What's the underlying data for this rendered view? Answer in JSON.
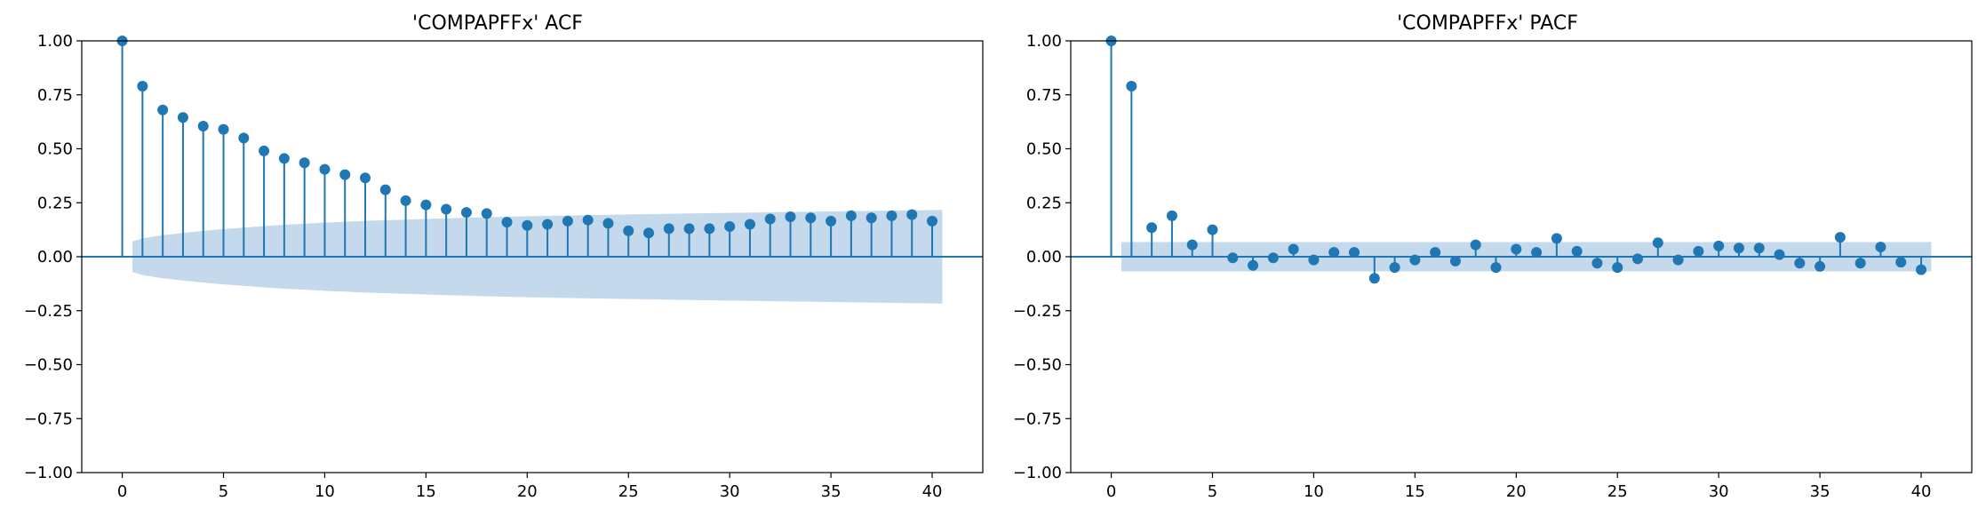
{
  "chart_data": [
    {
      "type": "stem",
      "title": "'COMPAPFFx' ACF",
      "xlabel": "",
      "ylabel": "",
      "xlim": [
        -2,
        42.5
      ],
      "ylim": [
        -1.0,
        1.0
      ],
      "x_ticks": [
        0,
        5,
        10,
        15,
        20,
        25,
        30,
        35,
        40
      ],
      "y_ticks": [
        -1.0,
        -0.75,
        -0.5,
        -0.25,
        0.0,
        0.25,
        0.5,
        0.75,
        1.0
      ],
      "y_tick_labels": [
        "−1.00",
        "−0.75",
        "−0.50",
        "−0.25",
        "0.00",
        "0.25",
        "0.50",
        "0.75",
        "1.00"
      ],
      "lags": [
        0,
        1,
        2,
        3,
        4,
        5,
        6,
        7,
        8,
        9,
        10,
        11,
        12,
        13,
        14,
        15,
        16,
        17,
        18,
        19,
        20,
        21,
        22,
        23,
        24,
        25,
        26,
        27,
        28,
        29,
        30,
        31,
        32,
        33,
        34,
        35,
        36,
        37,
        38,
        39,
        40
      ],
      "values": [
        1.0,
        0.79,
        0.68,
        0.645,
        0.605,
        0.59,
        0.55,
        0.49,
        0.455,
        0.435,
        0.405,
        0.38,
        0.365,
        0.31,
        0.26,
        0.24,
        0.22,
        0.205,
        0.2,
        0.16,
        0.145,
        0.15,
        0.165,
        0.17,
        0.155,
        0.12,
        0.11,
        0.13,
        0.13,
        0.13,
        0.14,
        0.15,
        0.175,
        0.185,
        0.18,
        0.165,
        0.19,
        0.18,
        0.19,
        0.195,
        0.165
      ],
      "confidence_band": {
        "x": [
          0.5,
          1,
          2,
          3,
          4,
          5,
          6,
          7,
          8,
          9,
          10,
          12,
          14,
          16,
          18,
          20,
          25,
          30,
          35,
          40,
          40.5
        ],
        "upper": [
          0.071,
          0.085,
          0.1,
          0.11,
          0.12,
          0.128,
          0.135,
          0.142,
          0.148,
          0.153,
          0.158,
          0.166,
          0.172,
          0.178,
          0.183,
          0.188,
          0.196,
          0.203,
          0.21,
          0.216,
          0.217
        ]
      },
      "color": "#1f77b4",
      "band_color": "#c5d9ec",
      "grid": false
    },
    {
      "type": "stem",
      "title": "'COMPAPFFx' PACF",
      "xlabel": "",
      "ylabel": "",
      "xlim": [
        -2,
        42.5
      ],
      "ylim": [
        -1.0,
        1.0
      ],
      "x_ticks": [
        0,
        5,
        10,
        15,
        20,
        25,
        30,
        35,
        40
      ],
      "y_ticks": [
        -1.0,
        -0.75,
        -0.5,
        -0.25,
        0.0,
        0.25,
        0.5,
        0.75,
        1.0
      ],
      "y_tick_labels": [
        "−1.00",
        "−0.75",
        "−0.50",
        "−0.25",
        "0.00",
        "0.25",
        "0.50",
        "0.75",
        "1.00"
      ],
      "lags": [
        0,
        1,
        2,
        3,
        4,
        5,
        6,
        7,
        8,
        9,
        10,
        11,
        12,
        13,
        14,
        15,
        16,
        17,
        18,
        19,
        20,
        21,
        22,
        23,
        24,
        25,
        26,
        27,
        28,
        29,
        30,
        31,
        32,
        33,
        34,
        35,
        36,
        37,
        38,
        39,
        40
      ],
      "values": [
        1.0,
        0.79,
        0.135,
        0.19,
        0.055,
        0.125,
        -0.005,
        -0.04,
        -0.005,
        0.035,
        -0.015,
        0.02,
        0.02,
        -0.1,
        -0.05,
        -0.015,
        0.02,
        -0.02,
        0.055,
        -0.05,
        0.035,
        0.02,
        0.085,
        0.025,
        -0.03,
        -0.05,
        -0.01,
        0.065,
        -0.015,
        0.025,
        0.05,
        0.04,
        0.04,
        0.01,
        -0.03,
        -0.045,
        0.09,
        -0.03,
        0.045,
        -0.025,
        -0.06
      ],
      "confidence_band": {
        "x": [
          0.5,
          40.5
        ],
        "upper": [
          0.068,
          0.068
        ]
      },
      "color": "#1f77b4",
      "band_color": "#c5d9ec",
      "grid": false
    }
  ]
}
